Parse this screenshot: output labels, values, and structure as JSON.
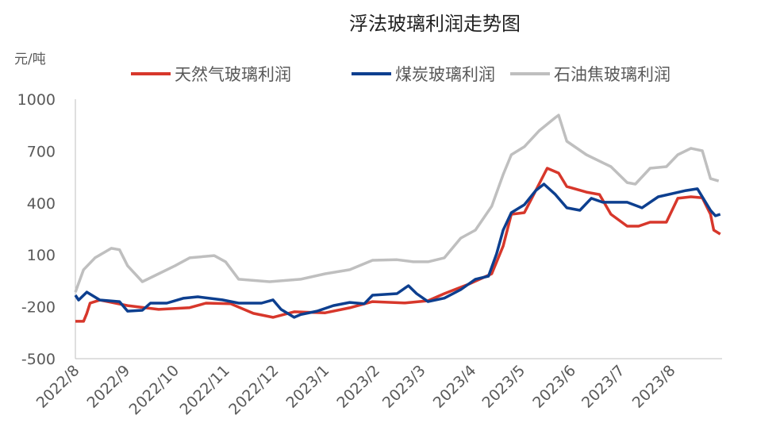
{
  "chart_data": {
    "type": "line",
    "title": "浮法玻璃利润走势图",
    "ylabel": "元/吨",
    "xlabel": "",
    "ylim": [
      -500,
      1000
    ],
    "yticks": [
      1000,
      700,
      400,
      100,
      -200,
      -500
    ],
    "xlim": [
      "2022-08-01",
      "2023-08-31"
    ],
    "xticks": [
      "2022/8",
      "2022/9",
      "2022/10",
      "2022/11",
      "2022/12",
      "2023/1",
      "2023/2",
      "2023/3",
      "2023/4",
      "2023/5",
      "2023/6",
      "2023/7",
      "2023/8"
    ],
    "grid": false,
    "legend": "top",
    "series": [
      {
        "name": "天然气玻璃利润",
        "color": "#d7372b",
        "points": [
          [
            "2022-08-01",
            -284
          ],
          [
            "2022-08-06",
            -284
          ],
          [
            "2022-08-08",
            -238
          ],
          [
            "2022-08-10",
            -179
          ],
          [
            "2022-08-16",
            -161
          ],
          [
            "2022-09-02",
            -193
          ],
          [
            "2022-09-21",
            -215
          ],
          [
            "2022-10-10",
            -205
          ],
          [
            "2022-10-20",
            -179
          ],
          [
            "2022-11-04",
            -182
          ],
          [
            "2022-11-18",
            -238
          ],
          [
            "2022-11-30",
            -261
          ],
          [
            "2022-12-13",
            -229
          ],
          [
            "2023-01-01",
            -235
          ],
          [
            "2023-01-16",
            -206
          ],
          [
            "2023-01-30",
            -170
          ],
          [
            "2023-02-19",
            -178
          ],
          [
            "2023-03-05",
            -165
          ],
          [
            "2023-03-15",
            -124
          ],
          [
            "2023-03-30",
            -69
          ],
          [
            "2023-04-13",
            -9
          ],
          [
            "2023-04-20",
            151
          ],
          [
            "2023-04-25",
            335
          ],
          [
            "2023-05-03",
            344
          ],
          [
            "2023-05-10",
            472
          ],
          [
            "2023-05-17",
            601
          ],
          [
            "2023-05-24",
            573
          ],
          [
            "2023-05-29",
            495
          ],
          [
            "2023-06-10",
            463
          ],
          [
            "2023-06-18",
            449
          ],
          [
            "2023-06-25",
            335
          ],
          [
            "2023-07-05",
            266
          ],
          [
            "2023-07-12",
            266
          ],
          [
            "2023-07-19",
            289
          ],
          [
            "2023-07-29",
            289
          ],
          [
            "2023-08-05",
            427
          ],
          [
            "2023-08-13",
            436
          ],
          [
            "2023-08-20",
            430
          ],
          [
            "2023-08-25",
            335
          ],
          [
            "2023-08-27",
            243
          ],
          [
            "2023-08-31",
            220
          ]
        ]
      },
      {
        "name": "煤炭玻璃利润",
        "color": "#0d3f8f",
        "points": [
          [
            "2022-08-01",
            -133
          ],
          [
            "2022-08-03",
            -161
          ],
          [
            "2022-08-08",
            -115
          ],
          [
            "2022-08-16",
            -161
          ],
          [
            "2022-08-28",
            -170
          ],
          [
            "2022-09-02",
            -225
          ],
          [
            "2022-09-11",
            -220
          ],
          [
            "2022-09-16",
            -179
          ],
          [
            "2022-09-26",
            -179
          ],
          [
            "2022-10-06",
            -151
          ],
          [
            "2022-10-15",
            -142
          ],
          [
            "2022-10-30",
            -160
          ],
          [
            "2022-11-09",
            -179
          ],
          [
            "2022-11-23",
            -179
          ],
          [
            "2022-11-30",
            -160
          ],
          [
            "2022-12-05",
            -215
          ],
          [
            "2022-12-13",
            -261
          ],
          [
            "2022-12-17",
            -245
          ],
          [
            "2022-12-27",
            -225
          ],
          [
            "2023-01-06",
            -193
          ],
          [
            "2023-01-16",
            -175
          ],
          [
            "2023-01-25",
            -182
          ],
          [
            "2023-01-30",
            -133
          ],
          [
            "2023-02-14",
            -124
          ],
          [
            "2023-02-21",
            -78
          ],
          [
            "2023-02-26",
            -124
          ],
          [
            "2023-03-05",
            -170
          ],
          [
            "2023-03-15",
            -150
          ],
          [
            "2023-03-25",
            -101
          ],
          [
            "2023-04-03",
            -41
          ],
          [
            "2023-04-11",
            -23
          ],
          [
            "2023-04-16",
            106
          ],
          [
            "2023-04-20",
            243
          ],
          [
            "2023-04-25",
            344
          ],
          [
            "2023-05-03",
            390
          ],
          [
            "2023-05-10",
            472
          ],
          [
            "2023-05-15",
            509
          ],
          [
            "2023-05-22",
            449
          ],
          [
            "2023-05-29",
            372
          ],
          [
            "2023-06-06",
            358
          ],
          [
            "2023-06-13",
            427
          ],
          [
            "2023-06-20",
            404
          ],
          [
            "2023-07-05",
            404
          ],
          [
            "2023-07-14",
            372
          ],
          [
            "2023-07-24",
            436
          ],
          [
            "2023-08-10",
            472
          ],
          [
            "2023-08-17",
            482
          ],
          [
            "2023-08-25",
            358
          ],
          [
            "2023-08-28",
            326
          ],
          [
            "2023-08-31",
            335
          ]
        ]
      },
      {
        "name": "石油焦玻璃利润",
        "color": "#bfbfbf",
        "points": [
          [
            "2022-08-01",
            -115
          ],
          [
            "2022-08-06",
            14
          ],
          [
            "2022-08-13",
            83
          ],
          [
            "2022-08-23",
            138
          ],
          [
            "2022-08-28",
            130
          ],
          [
            "2022-09-02",
            37
          ],
          [
            "2022-09-11",
            -55
          ],
          [
            "2022-09-21",
            -9
          ],
          [
            "2022-10-01",
            37
          ],
          [
            "2022-10-10",
            83
          ],
          [
            "2022-10-25",
            96
          ],
          [
            "2022-11-01",
            60
          ],
          [
            "2022-11-09",
            -41
          ],
          [
            "2022-11-28",
            -55
          ],
          [
            "2022-12-17",
            -41
          ],
          [
            "2023-01-01",
            -9
          ],
          [
            "2023-01-16",
            14
          ],
          [
            "2023-01-30",
            69
          ],
          [
            "2023-02-14",
            72
          ],
          [
            "2023-02-24",
            60
          ],
          [
            "2023-03-05",
            60
          ],
          [
            "2023-03-15",
            83
          ],
          [
            "2023-03-25",
            197
          ],
          [
            "2023-04-03",
            243
          ],
          [
            "2023-04-13",
            381
          ],
          [
            "2023-04-20",
            564
          ],
          [
            "2023-04-25",
            679
          ],
          [
            "2023-05-03",
            725
          ],
          [
            "2023-05-12",
            817
          ],
          [
            "2023-05-22",
            894
          ],
          [
            "2023-05-24",
            908
          ],
          [
            "2023-05-29",
            757
          ],
          [
            "2023-06-10",
            679
          ],
          [
            "2023-06-25",
            610
          ],
          [
            "2023-07-05",
            518
          ],
          [
            "2023-07-10",
            509
          ],
          [
            "2023-07-19",
            601
          ],
          [
            "2023-07-29",
            610
          ],
          [
            "2023-08-05",
            679
          ],
          [
            "2023-08-13",
            716
          ],
          [
            "2023-08-20",
            702
          ],
          [
            "2023-08-25",
            541
          ],
          [
            "2023-08-30",
            527
          ]
        ]
      }
    ]
  }
}
